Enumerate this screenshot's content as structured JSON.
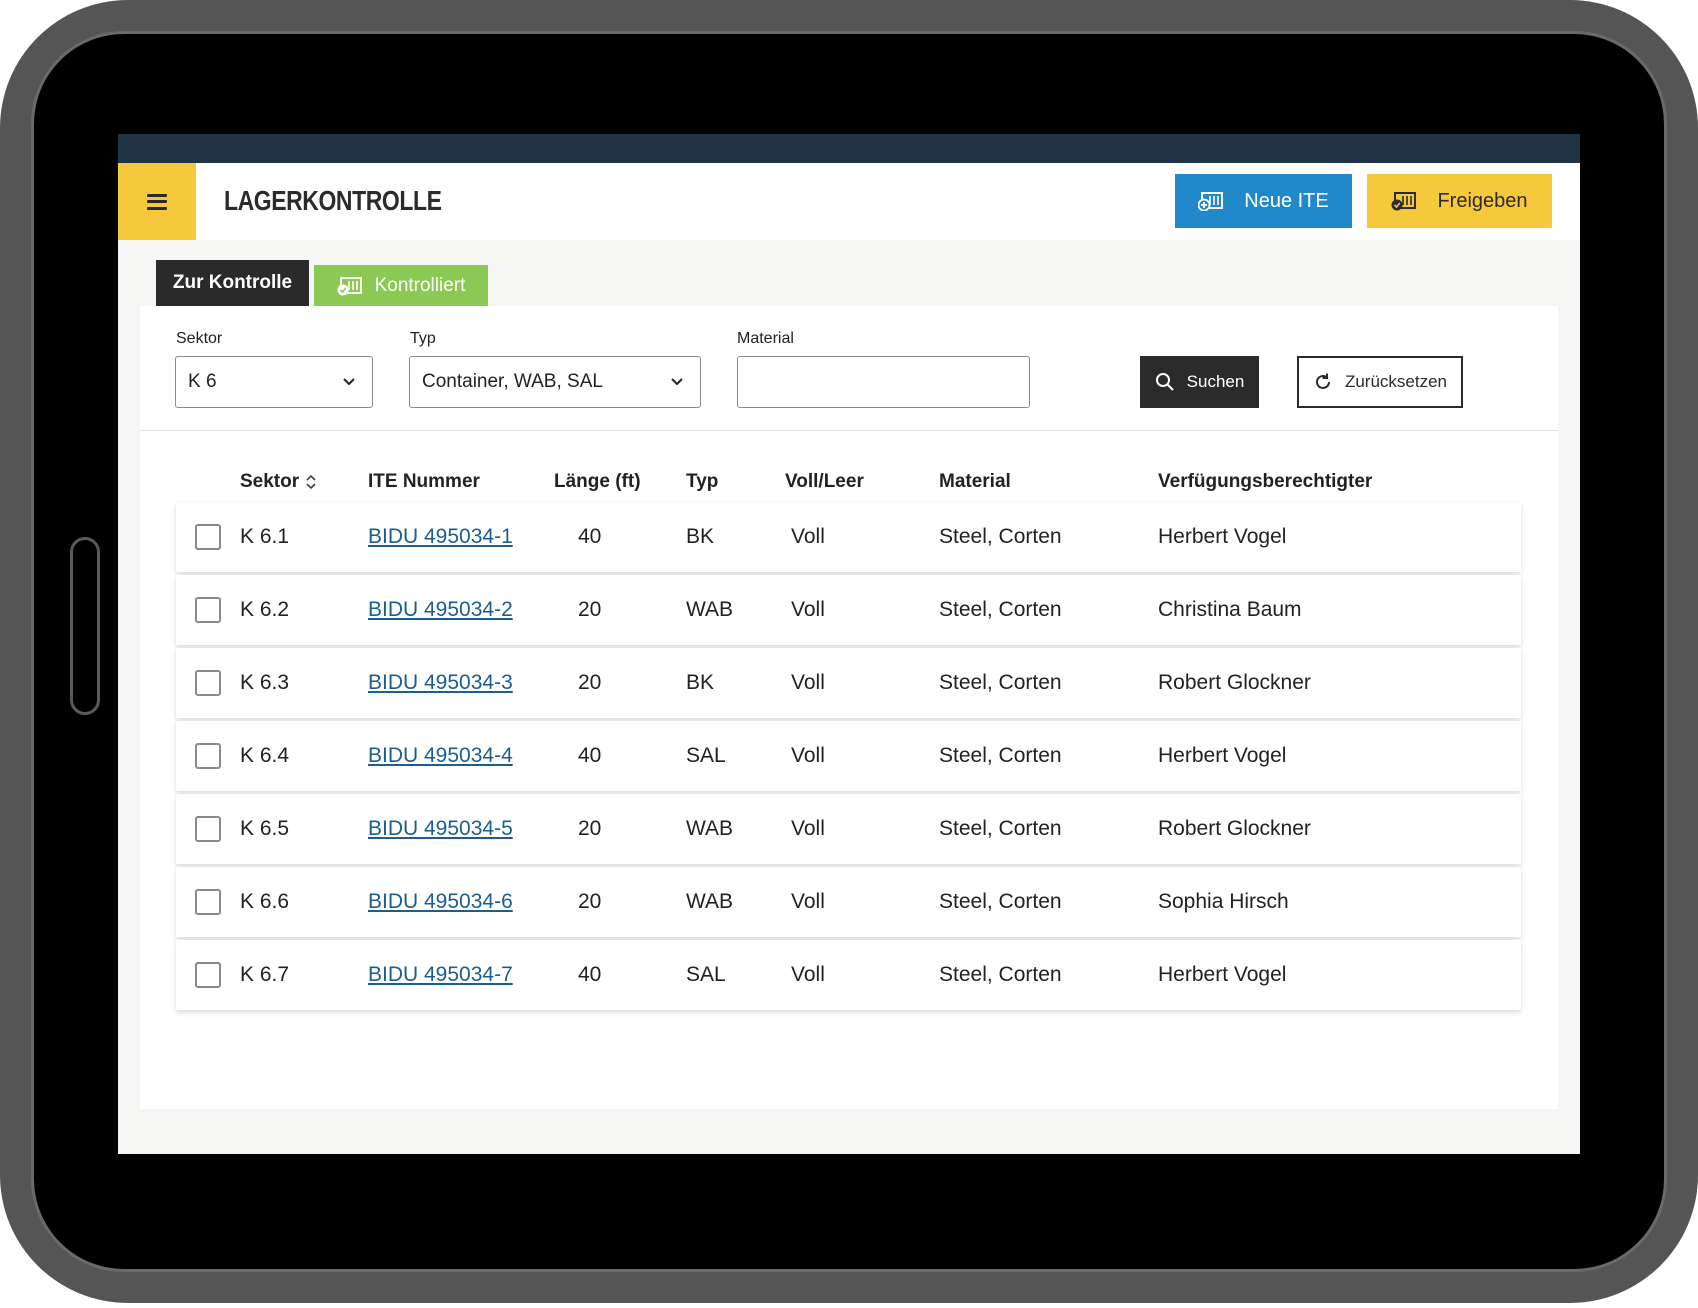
{
  "app": {
    "title": "LAGERKONTROLLE",
    "new_button_label": "Neue ITE",
    "release_button_label": "Freigeben"
  },
  "tabs": [
    {
      "label": "Zur Kontrolle",
      "active": true
    },
    {
      "label": "Kontrolliert",
      "active": false
    }
  ],
  "filters": {
    "sector": {
      "label": "Sektor",
      "value": "K 6"
    },
    "type": {
      "label": "Typ",
      "value": "Container, WAB, SAL"
    },
    "material": {
      "label": "Material",
      "value": "",
      "placeholder": ""
    },
    "search_label": "Suchen",
    "reset_label": "Zurücksetzen"
  },
  "table": {
    "columns": {
      "sector": "Sektor",
      "ite_number": "ITE Nummer",
      "length": "Länge (ft)",
      "type": "Typ",
      "full_empty": "Voll/Leer",
      "material": "Material",
      "owner": "Verfügungsberechtigter"
    },
    "rows": [
      {
        "sector": "K 6.1",
        "ite": "BIDU 495034-1",
        "length": "40",
        "type": "BK",
        "status": "Voll",
        "material": "Steel, Corten",
        "owner": "Herbert Vogel"
      },
      {
        "sector": "K 6.2",
        "ite": "BIDU 495034-2",
        "length": "20",
        "type": "WAB",
        "status": "Voll",
        "material": "Steel, Corten",
        "owner": "Christina Baum"
      },
      {
        "sector": "K 6.3",
        "ite": "BIDU 495034-3",
        "length": "20",
        "type": "BK",
        "status": "Voll",
        "material": "Steel, Corten",
        "owner": "Robert Glockner"
      },
      {
        "sector": "K 6.4",
        "ite": "BIDU 495034-4",
        "length": "40",
        "type": "SAL",
        "status": "Voll",
        "material": "Steel, Corten",
        "owner": "Herbert Vogel"
      },
      {
        "sector": "K 6.5",
        "ite": "BIDU 495034-5",
        "length": "20",
        "type": "WAB",
        "status": "Voll",
        "material": "Steel, Corten",
        "owner": "Robert Glockner"
      },
      {
        "sector": "K 6.6",
        "ite": "BIDU 495034-6",
        "length": "20",
        "type": "WAB",
        "status": "Voll",
        "material": "Steel, Corten",
        "owner": "Sophia Hirsch"
      },
      {
        "sector": "K 6.7",
        "ite": "BIDU 495034-7",
        "length": "40",
        "type": "SAL",
        "status": "Voll",
        "material": "Steel, Corten",
        "owner": "Herbert Vogel"
      }
    ]
  },
  "colors": {
    "accent_yellow": "#f6c83b",
    "accent_blue": "#2188cc",
    "tab_green": "#8bc954",
    "statusbar": "#213446",
    "link": "#1b5e8f"
  },
  "icons": {
    "menu": "hamburger-icon",
    "new": "container-add-icon",
    "release": "container-release-icon",
    "checked": "container-check-icon",
    "search": "search-icon",
    "reset": "refresh-icon",
    "sort": "sort-icon",
    "dropdown": "chevron-down-icon"
  }
}
